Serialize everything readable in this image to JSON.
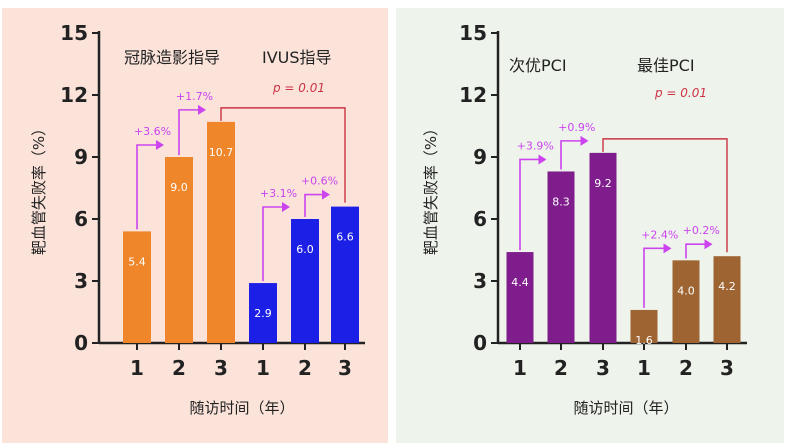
{
  "chart_data": [
    {
      "type": "bar",
      "background": "#fbe3da",
      "ylabel": "靶血管失败率（%）",
      "xlabel": "随访时间（年）",
      "ylim": [
        0,
        15
      ],
      "yticks": [
        "0",
        "3",
        "6",
        "9",
        "12",
        "15"
      ],
      "categories": [
        "1",
        "2",
        "3",
        "1",
        "2",
        "3"
      ],
      "groups": [
        {
          "name": "冠脉造影指导",
          "color": "#f0862a",
          "values": [
            5.4,
            9.0,
            10.7
          ],
          "value_labels": [
            "5.4",
            "9.0",
            "10.7"
          ],
          "increments": [
            "+3.6%",
            "+1.7%"
          ]
        },
        {
          "name": "IVUS指导",
          "color": "#1c1fe6",
          "values": [
            2.9,
            6.0,
            6.6
          ],
          "value_labels": [
            "2.9",
            "6.0",
            "6.6"
          ],
          "increments": [
            "+3.1%",
            "+0.6%"
          ]
        }
      ],
      "p_value": "p = 0.01",
      "increment_color": "#cc44ee",
      "bracket_color": "#cc3344"
    },
    {
      "type": "bar",
      "background": "#eef4ec",
      "ylabel": "靶血管失败率（%）",
      "xlabel": "随访时间（年）",
      "ylim": [
        0,
        15
      ],
      "yticks": [
        "0",
        "3",
        "6",
        "9",
        "12",
        "15"
      ],
      "categories": [
        "1",
        "2",
        "3",
        "1",
        "2",
        "3"
      ],
      "groups": [
        {
          "name": "次优PCI",
          "color": "#7f1d8c",
          "values": [
            4.4,
            8.3,
            9.2
          ],
          "value_labels": [
            "4.4",
            "8.3",
            "9.2"
          ],
          "increments": [
            "+3.9%",
            "+0.9%"
          ]
        },
        {
          "name": "最佳PCI",
          "color": "#9e6431",
          "values": [
            1.6,
            4.0,
            4.2
          ],
          "value_labels": [
            "1.6",
            "4.0",
            "4.2"
          ],
          "increments": [
            "+2.4%",
            "+0.2%"
          ]
        }
      ],
      "p_value": "p = 0.01",
      "increment_color": "#cc44ee",
      "bracket_color": "#cc3344"
    }
  ]
}
